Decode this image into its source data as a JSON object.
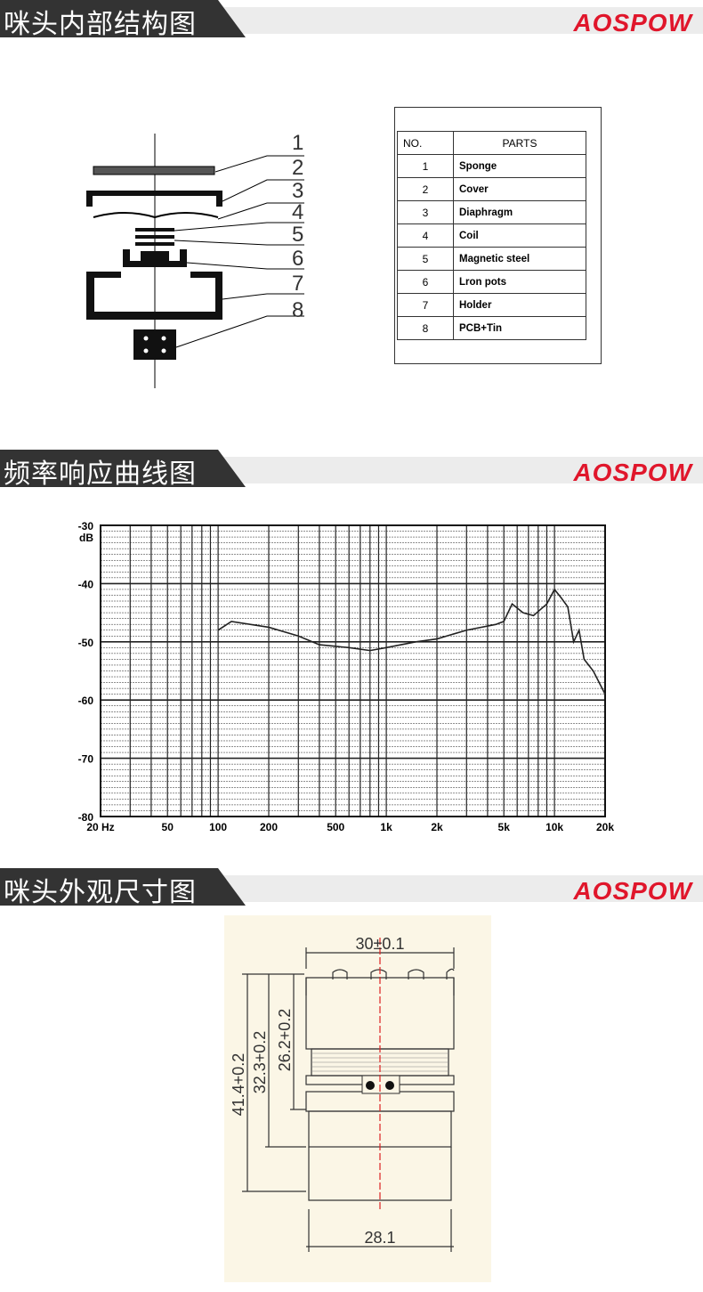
{
  "brand": "AOSPOW",
  "sections": [
    {
      "title": "咪头内部结构图"
    },
    {
      "title": "频率响应曲线图"
    },
    {
      "title": "咪头外观尺寸图"
    }
  ],
  "structure": {
    "callouts": [
      "1",
      "2",
      "3",
      "4",
      "5",
      "6",
      "7",
      "8"
    ]
  },
  "parts_table": {
    "headers": [
      "NO.",
      "PARTS"
    ],
    "rows": [
      [
        "1",
        "Sponge"
      ],
      [
        "2",
        "Cover"
      ],
      [
        "3",
        "Diaphragm"
      ],
      [
        "4",
        "Coil"
      ],
      [
        "5",
        "Magnetic steel"
      ],
      [
        "6",
        "Lron pots"
      ],
      [
        "7",
        "Holder"
      ],
      [
        "8",
        "PCB+Tin"
      ]
    ]
  },
  "chart_data": {
    "type": "line",
    "title": "",
    "xlabel": "",
    "ylabel": "dB",
    "xscale": "log",
    "xlim": [
      20,
      20000
    ],
    "ylim": [
      -80,
      -30
    ],
    "grid": true,
    "x_ticks": [
      {
        "v": 20,
        "label": "20 Hz"
      },
      {
        "v": 50,
        "label": "50"
      },
      {
        "v": 100,
        "label": "100"
      },
      {
        "v": 200,
        "label": "200"
      },
      {
        "v": 500,
        "label": "500"
      },
      {
        "v": 1000,
        "label": "1k"
      },
      {
        "v": 2000,
        "label": "2k"
      },
      {
        "v": 5000,
        "label": "5k"
      },
      {
        "v": 10000,
        "label": "10k"
      },
      {
        "v": 20000,
        "label": "20k"
      }
    ],
    "y_ticks": [
      -30,
      -40,
      -50,
      -60,
      -70,
      -80
    ],
    "x": [
      100,
      120,
      200,
      300,
      400,
      600,
      800,
      1000,
      1500,
      2000,
      3000,
      4500,
      5000,
      5600,
      6500,
      7500,
      9000,
      10000,
      11000,
      12000,
      13000,
      14000,
      15000,
      17000,
      20000
    ],
    "y": [
      -48,
      -46.5,
      -47.5,
      -49,
      -50.5,
      -51,
      -51.5,
      -51,
      -50,
      -49.5,
      -48,
      -47,
      -46.5,
      -43.5,
      -45,
      -45.5,
      -43.5,
      -41,
      -42.5,
      -44,
      -50,
      -48,
      -53,
      -55,
      -59
    ]
  },
  "dimensions": {
    "top_width": "30±0.1",
    "bottom_width": "28.1",
    "height_total": "41.4+0.2",
    "height_mid": "32.3+0.2",
    "height_upper": "26.2+0.2"
  }
}
